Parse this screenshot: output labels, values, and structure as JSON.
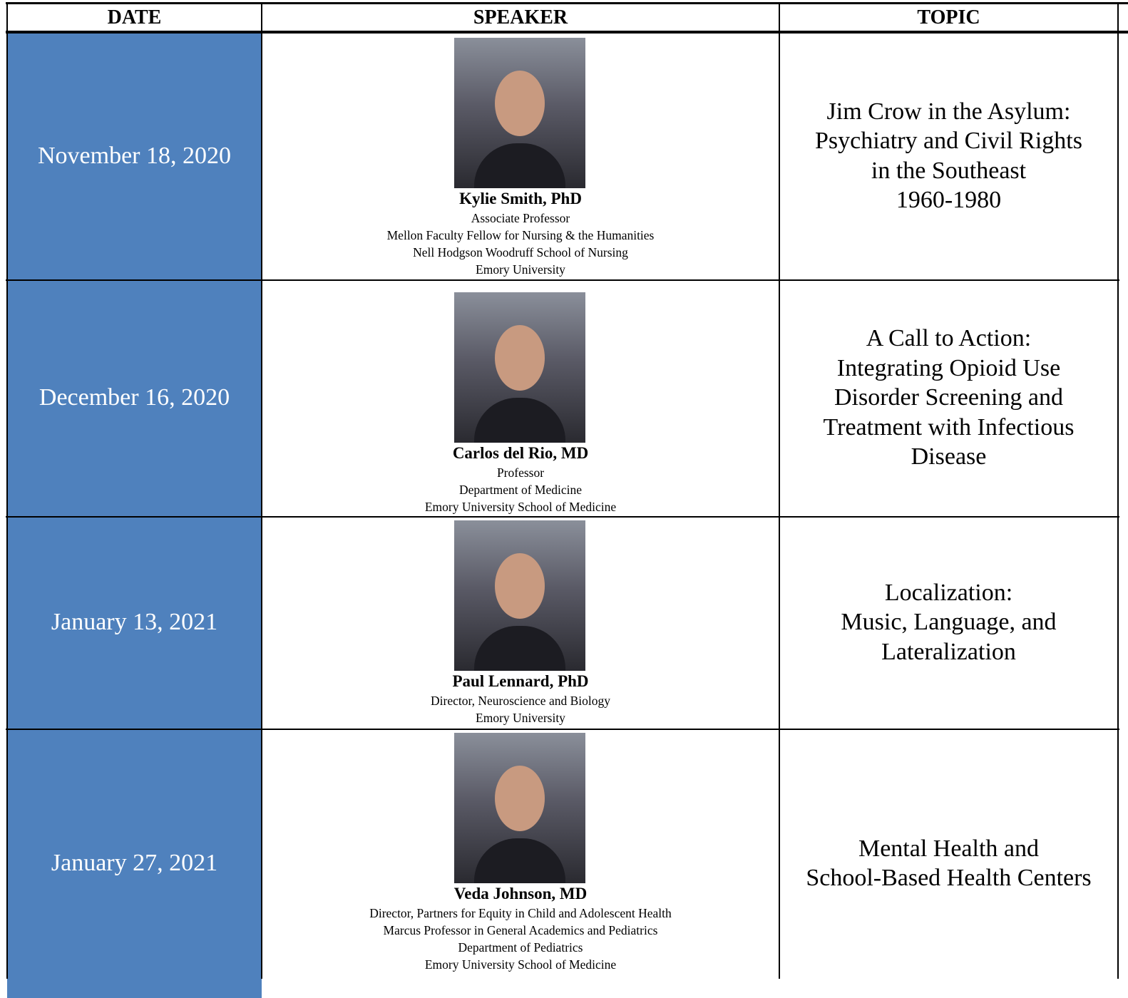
{
  "table": {
    "columns": [
      "DATE",
      "SPEAKER",
      "TOPIC"
    ],
    "rows": [
      {
        "date": "November 18, 2020",
        "speaker": {
          "name": "Kylie Smith, PhD",
          "lines": [
            "Associate Professor",
            "Mellon Faculty Fellow for Nursing & the Humanities",
            "Nell Hodgson Woodruff School of Nursing",
            "Emory University"
          ]
        },
        "topic": [
          "Jim Crow in the Asylum:",
          "Psychiatry and Civil Rights",
          "in the Southeast",
          "1960-1980"
        ]
      },
      {
        "date": "December 16, 2020",
        "speaker": {
          "name": "Carlos del Rio, MD",
          "lines": [
            "Professor",
            "Department of Medicine",
            "Emory University School of Medicine"
          ]
        },
        "topic": [
          "A Call to Action:",
          "Integrating Opioid Use",
          "Disorder Screening and",
          "Treatment with Infectious",
          "Disease"
        ]
      },
      {
        "date": "January 13, 2021",
        "speaker": {
          "name": "Paul Lennard, PhD",
          "lines": [
            "Director, Neuroscience and Biology",
            "Emory University"
          ]
        },
        "topic": [
          "Localization:",
          "Music, Language, and",
          "Lateralization"
        ]
      },
      {
        "date": "January 27, 2021",
        "speaker": {
          "name": "Veda Johnson, MD",
          "lines": [
            "Director, Partners for Equity in Child and Adolescent Health",
            "Marcus Professor in General Academics and Pediatrics",
            "Department of Pediatrics",
            "Emory University School of Medicine"
          ]
        },
        "topic": [
          "Mental Health and",
          "School-Based Health Centers"
        ]
      }
    ]
  }
}
